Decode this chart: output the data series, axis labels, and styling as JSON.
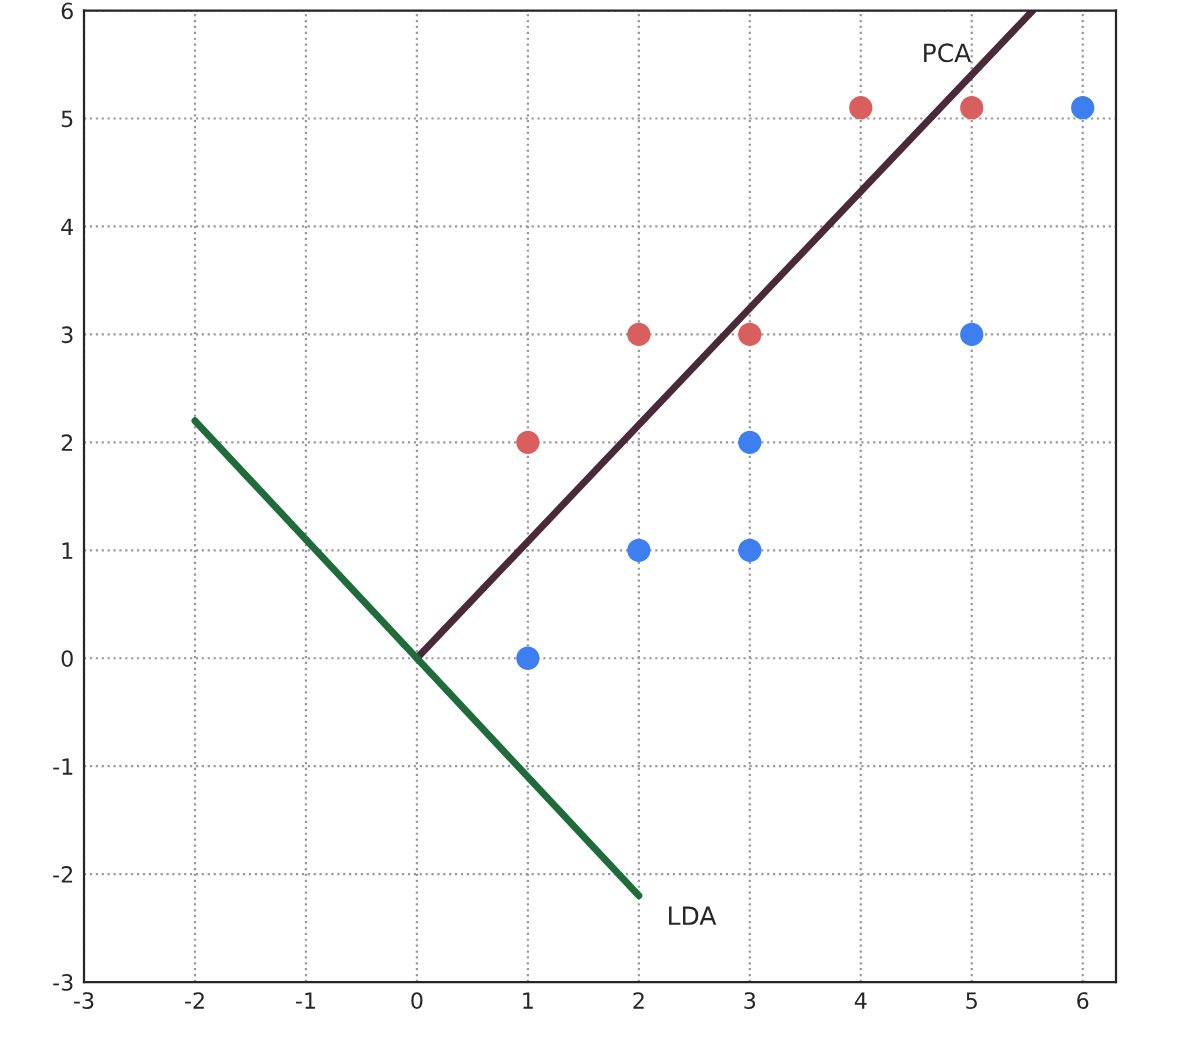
{
  "chart_data": {
    "type": "scatter",
    "xlim": [
      -3,
      6.3
    ],
    "ylim": [
      -3,
      6
    ],
    "xticks": [
      -3,
      -2,
      -1,
      0,
      1,
      2,
      3,
      4,
      5,
      6
    ],
    "yticks": [
      -3,
      -2,
      -1,
      0,
      1,
      2,
      3,
      4,
      5,
      6
    ],
    "grid": true,
    "series": [
      {
        "color": "#d95f5f",
        "marker": "circle",
        "x": [
          1,
          2,
          3,
          4,
          5
        ],
        "values": [
          2,
          3,
          3,
          5.1,
          5.1
        ]
      },
      {
        "color": "#3d7ff0",
        "marker": "circle",
        "x": [
          1,
          2,
          3,
          3,
          5,
          6
        ],
        "values": [
          0,
          1,
          1,
          2,
          3,
          5.1
        ]
      },
      {
        "type": "line",
        "name": "PCA",
        "color": "#4a2a38",
        "x": [
          0,
          5.55
        ],
        "values": [
          0,
          6
        ]
      },
      {
        "type": "line",
        "name": "LDA",
        "color": "#1f6b3a",
        "x": [
          -2,
          2
        ],
        "values": [
          2.2,
          -2.2
        ]
      }
    ]
  }
}
